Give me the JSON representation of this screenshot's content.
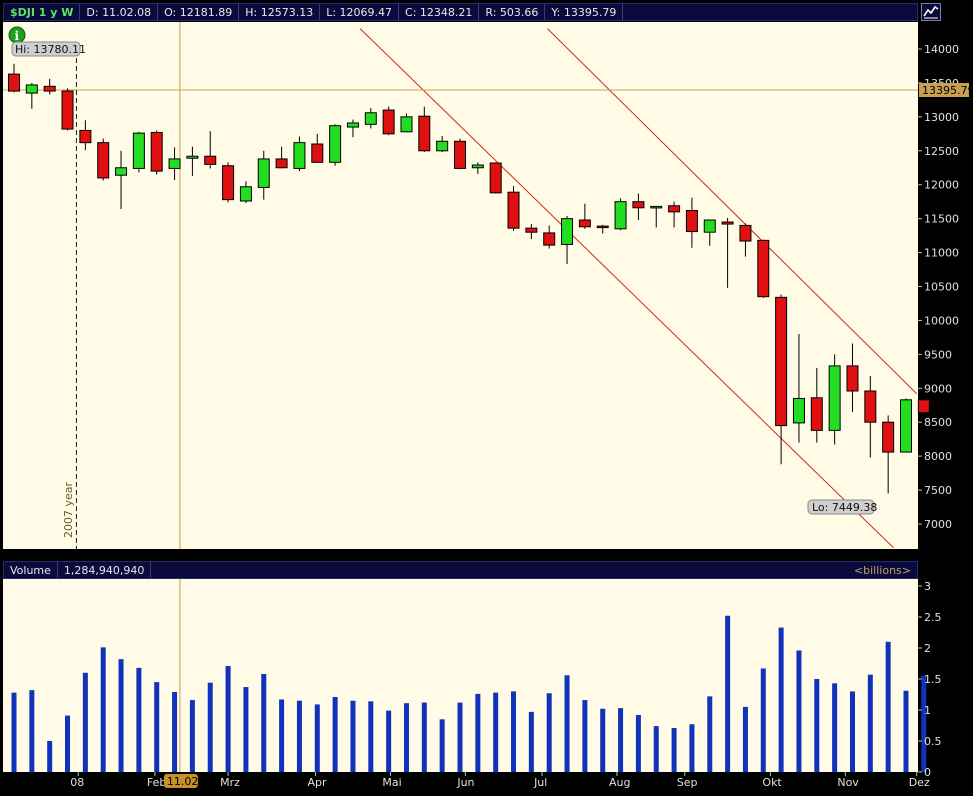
{
  "header": {
    "symbol": "$DJI 1 y W",
    "date": "D: 11.02.08",
    "open": "O: 12181.89",
    "high": "H: 12573.13",
    "low": "L: 12069.47",
    "close": "C: 12348.21",
    "range": "R: 503.66",
    "y": "Y: 13395.79"
  },
  "volume_header": {
    "label": "Volume",
    "value": "1,284,940,940",
    "unit": "<billions>"
  },
  "annotations": {
    "hi": "Hi: 13780.11",
    "lo": "Lo: 7449.38",
    "crosshair_price": "13395.79",
    "crosshair_date": "11.02",
    "year_marker": "2007 year"
  },
  "colors": {
    "background": "#fffbe6",
    "up": "#22dd22",
    "down": "#e01010",
    "volume": "#1133bb",
    "channel": "#cc2a1a",
    "crosshair": "#c8a050"
  },
  "chart_data": [
    {
      "type": "candlestick",
      "title": "$DJI 1 y W",
      "y_ticks": [
        7000,
        7500,
        8000,
        8500,
        9000,
        9500,
        10000,
        10500,
        11000,
        11500,
        12000,
        12500,
        13000,
        13500,
        14000
      ],
      "ylim": [
        6650,
        14300
      ],
      "x_tick_labels": [
        "08",
        "Feb",
        "Mrz",
        "Apr",
        "Mai",
        "Jun",
        "Jul",
        "Aug",
        "Sep",
        "Okt",
        "Nov",
        "Dez"
      ],
      "grid": false,
      "candles": [
        {
          "o": 13630,
          "h": 13780,
          "l": 13360,
          "c": 13380
        },
        {
          "o": 13350,
          "h": 13500,
          "l": 13120,
          "c": 13470
        },
        {
          "o": 13450,
          "h": 13560,
          "l": 13330,
          "c": 13380
        },
        {
          "o": 13380,
          "h": 13420,
          "l": 12800,
          "c": 12820
        },
        {
          "o": 12800,
          "h": 12950,
          "l": 12510,
          "c": 12620
        },
        {
          "o": 12620,
          "h": 12680,
          "l": 12060,
          "c": 12100
        },
        {
          "o": 12140,
          "h": 12500,
          "l": 11640,
          "c": 12250
        },
        {
          "o": 12240,
          "h": 12780,
          "l": 12180,
          "c": 12760
        },
        {
          "o": 12770,
          "h": 12800,
          "l": 12150,
          "c": 12200
        },
        {
          "o": 12240,
          "h": 12550,
          "l": 12070,
          "c": 12380
        },
        {
          "o": 12390,
          "h": 12560,
          "l": 12130,
          "c": 12420
        },
        {
          "o": 12420,
          "h": 12790,
          "l": 12240,
          "c": 12300
        },
        {
          "o": 12280,
          "h": 12330,
          "l": 11740,
          "c": 11780
        },
        {
          "o": 11760,
          "h": 12050,
          "l": 11730,
          "c": 11970
        },
        {
          "o": 11960,
          "h": 12500,
          "l": 11780,
          "c": 12380
        },
        {
          "o": 12380,
          "h": 12560,
          "l": 12240,
          "c": 12250
        },
        {
          "o": 12240,
          "h": 12710,
          "l": 12200,
          "c": 12620
        },
        {
          "o": 12600,
          "h": 12750,
          "l": 12330,
          "c": 12330
        },
        {
          "o": 12330,
          "h": 12890,
          "l": 12280,
          "c": 12870
        },
        {
          "o": 12850,
          "h": 12960,
          "l": 12700,
          "c": 12910
        },
        {
          "o": 12890,
          "h": 13130,
          "l": 12830,
          "c": 13060
        },
        {
          "o": 13100,
          "h": 13150,
          "l": 12730,
          "c": 12750
        },
        {
          "o": 12780,
          "h": 13050,
          "l": 12770,
          "c": 13000
        },
        {
          "o": 13010,
          "h": 13150,
          "l": 12480,
          "c": 12500
        },
        {
          "o": 12500,
          "h": 12720,
          "l": 12480,
          "c": 12640
        },
        {
          "o": 12640,
          "h": 12680,
          "l": 12230,
          "c": 12240
        },
        {
          "o": 12250,
          "h": 12330,
          "l": 12160,
          "c": 12290
        },
        {
          "o": 12320,
          "h": 12330,
          "l": 11870,
          "c": 11880
        },
        {
          "o": 11890,
          "h": 11980,
          "l": 11320,
          "c": 11360
        },
        {
          "o": 11360,
          "h": 11420,
          "l": 11200,
          "c": 11300
        },
        {
          "o": 11290,
          "h": 11400,
          "l": 11060,
          "c": 11110
        },
        {
          "o": 11120,
          "h": 11540,
          "l": 10830,
          "c": 11500
        },
        {
          "o": 11480,
          "h": 11720,
          "l": 11350,
          "c": 11380
        },
        {
          "o": 11390,
          "h": 11410,
          "l": 11280,
          "c": 11370
        },
        {
          "o": 11350,
          "h": 11800,
          "l": 11330,
          "c": 11750
        },
        {
          "o": 11750,
          "h": 11870,
          "l": 11480,
          "c": 11660
        },
        {
          "o": 11660,
          "h": 11690,
          "l": 11370,
          "c": 11680
        },
        {
          "o": 11690,
          "h": 11750,
          "l": 11370,
          "c": 11600
        },
        {
          "o": 11620,
          "h": 11810,
          "l": 11070,
          "c": 11310
        },
        {
          "o": 11300,
          "h": 11480,
          "l": 11100,
          "c": 11480
        },
        {
          "o": 11450,
          "h": 11510,
          "l": 10480,
          "c": 11420
        },
        {
          "o": 11400,
          "h": 11430,
          "l": 10940,
          "c": 11170
        },
        {
          "o": 11180,
          "h": 11190,
          "l": 10330,
          "c": 10350
        },
        {
          "o": 10340,
          "h": 10380,
          "l": 7880,
          "c": 8450
        },
        {
          "o": 8490,
          "h": 9800,
          "l": 8200,
          "c": 8850
        },
        {
          "o": 8860,
          "h": 9300,
          "l": 8200,
          "c": 8380
        },
        {
          "o": 8380,
          "h": 9500,
          "l": 8170,
          "c": 9330
        },
        {
          "o": 9330,
          "h": 9660,
          "l": 8650,
          "c": 8960
        },
        {
          "o": 8960,
          "h": 9180,
          "l": 7980,
          "c": 8500
        },
        {
          "o": 8500,
          "h": 8600,
          "l": 7450,
          "c": 8060
        },
        {
          "o": 8060,
          "h": 8850,
          "l": 8070,
          "c": 8830
        },
        {
          "o": 8830,
          "h": 8900,
          "l": 8120,
          "c": 8640
        }
      ]
    },
    {
      "type": "bar",
      "title": "Volume",
      "unit": "billions",
      "y_ticks": [
        0,
        0.5,
        1,
        1.5,
        2,
        2.5,
        3
      ],
      "ylim": [
        0,
        3.1
      ],
      "values": [
        1.28,
        1.32,
        0.5,
        0.91,
        1.6,
        2.01,
        1.82,
        1.68,
        1.45,
        1.29,
        1.16,
        1.44,
        1.71,
        1.37,
        1.58,
        1.17,
        1.15,
        1.09,
        1.21,
        1.15,
        1.14,
        0.99,
        1.11,
        1.12,
        0.85,
        1.12,
        1.26,
        1.28,
        1.3,
        0.97,
        1.27,
        1.56,
        1.16,
        1.02,
        1.03,
        0.92,
        0.74,
        0.71,
        0.77,
        1.22,
        2.52,
        1.05,
        1.67,
        2.33,
        1.96,
        1.5,
        1.43,
        1.3,
        1.57,
        2.1,
        1.31,
        1.55
      ]
    }
  ]
}
